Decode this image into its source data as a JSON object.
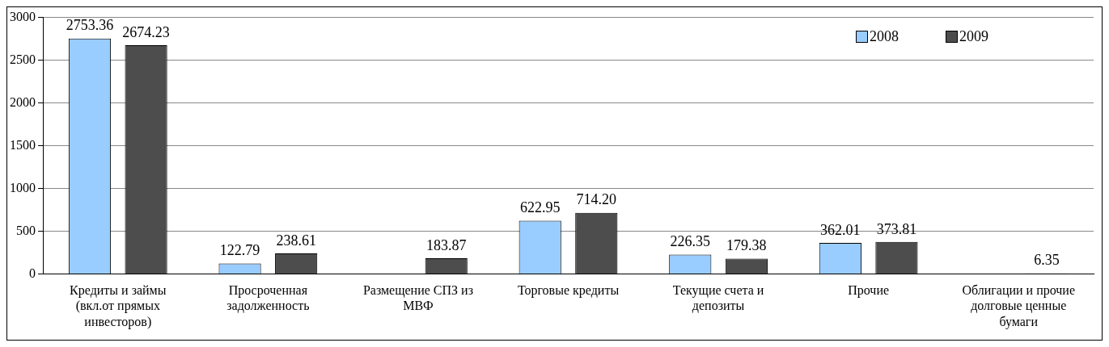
{
  "chart_data": {
    "type": "bar",
    "categories": [
      "Кредиты и займы (вкл.от прямых инвесторов)",
      "Просроченная задолженность",
      "Размещение СПЗ из МВФ",
      "Торговые кредиты",
      "Текущие счета и депозиты",
      "Прочие",
      "Облигации и прочие долговые ценные бумаги"
    ],
    "series": [
      {
        "name": "2008",
        "color": "#99ccff",
        "values": [
          2753.36,
          122.79,
          null,
          622.95,
          226.35,
          362.01,
          null
        ],
        "value_labels": [
          "2753.36",
          "122.79",
          null,
          "622.95",
          "226.35",
          "362.01",
          null
        ]
      },
      {
        "name": "2009",
        "color": "#4d4d4d",
        "values": [
          2674.23,
          238.61,
          183.87,
          714.2,
          179.38,
          373.81,
          6.35
        ],
        "value_labels": [
          "2674.23",
          "238.61",
          "183.87",
          "714.20",
          "179.38",
          "373.81",
          "6.35"
        ]
      }
    ],
    "ylim": [
      0,
      3000
    ],
    "yticks": [
      0,
      500,
      1000,
      1500,
      2000,
      2500,
      3000
    ],
    "grid": "y",
    "legend": "top right"
  }
}
